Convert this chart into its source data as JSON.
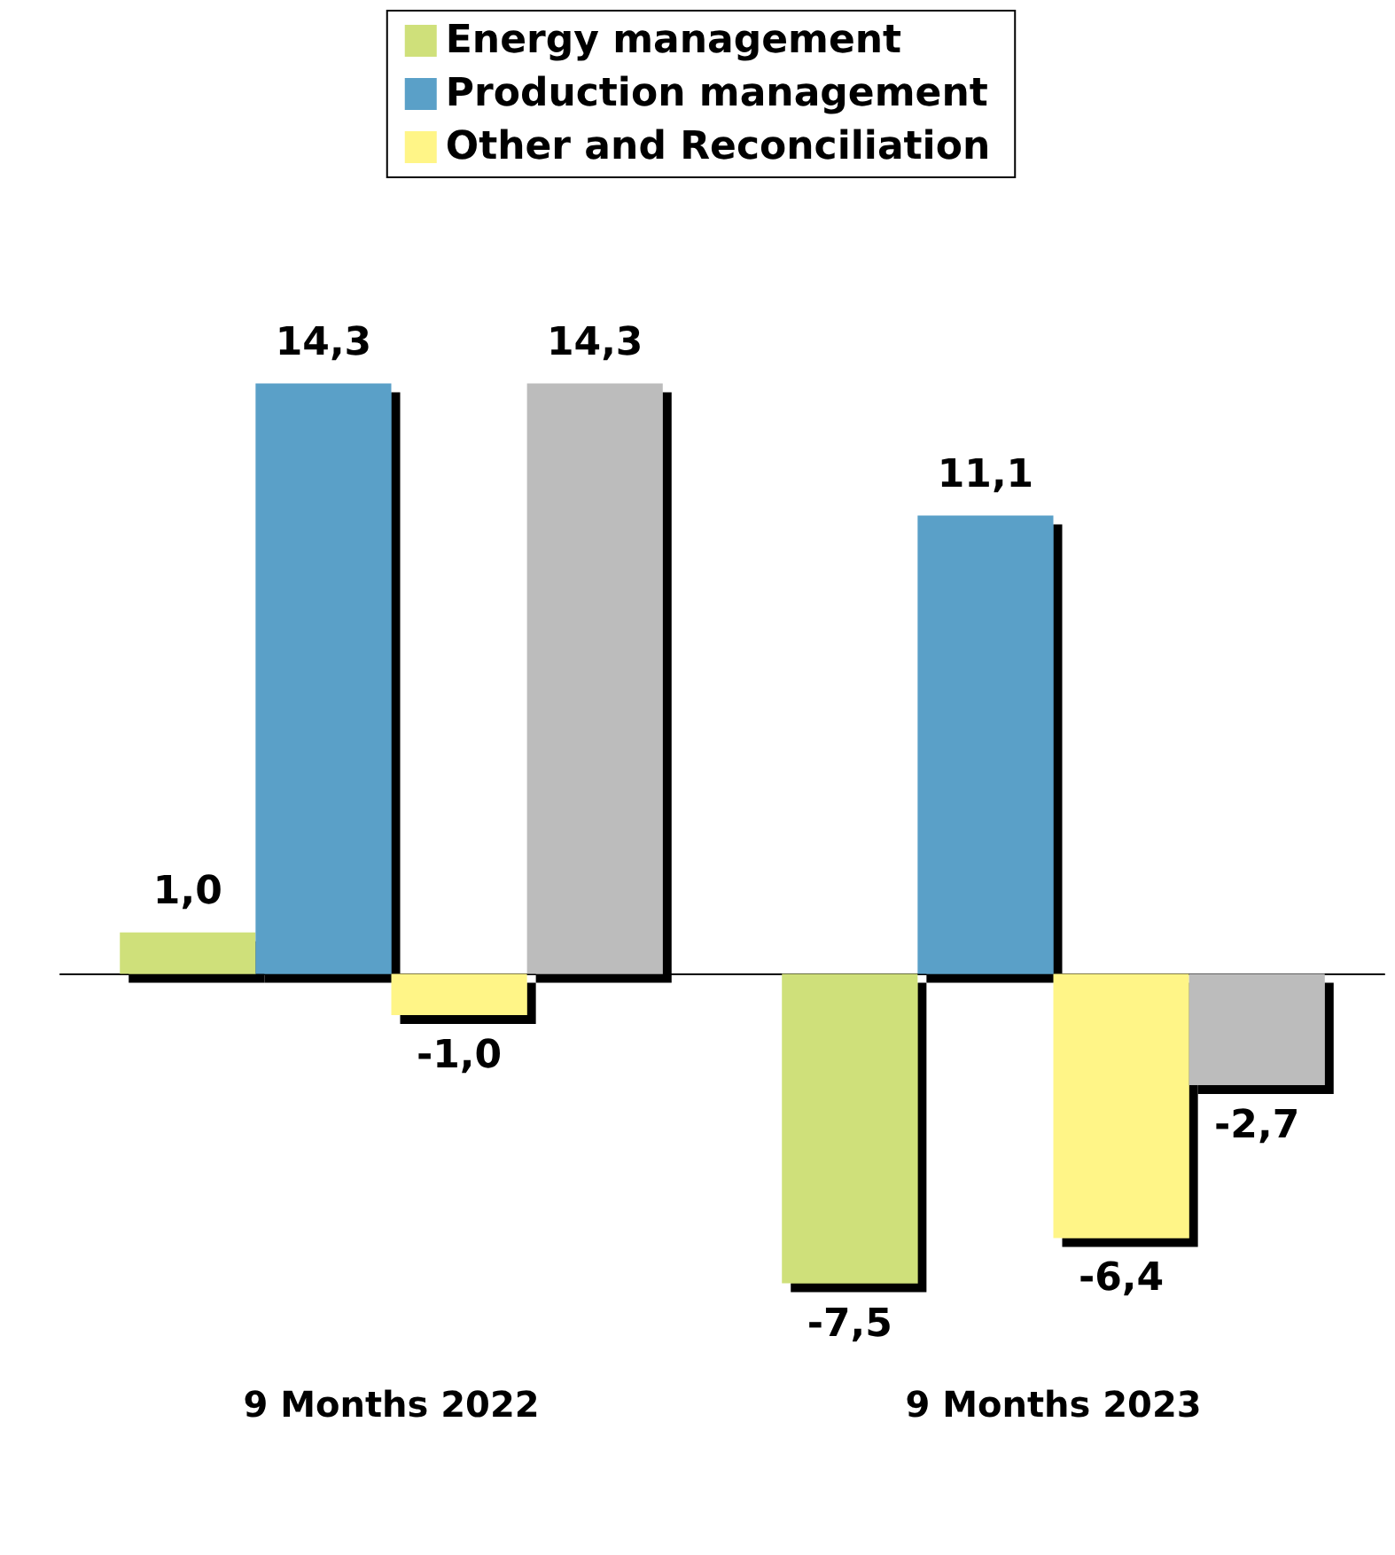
{
  "chart_data": {
    "type": "bar",
    "categories": [
      "9 Months 2022",
      "9 Months 2023"
    ],
    "series": [
      {
        "name": "Energy management",
        "color": "#cfe07a",
        "values": [
          1.0,
          -7.5
        ],
        "value_labels": [
          "1,0",
          "-7,5"
        ]
      },
      {
        "name": "Production management",
        "color": "#5aa0c8",
        "values": [
          14.3,
          11.1
        ],
        "value_labels": [
          "14,3",
          "11,1"
        ]
      },
      {
        "name": "Other and Reconciliation",
        "color": "#fff587",
        "values": [
          -1.0,
          -6.4
        ],
        "value_labels": [
          "-1,0",
          "-6,4"
        ]
      },
      {
        "color": "#bcbcbc",
        "values": [
          14.3,
          -2.7
        ],
        "value_labels": [
          "14,3",
          "-2,7"
        ]
      }
    ],
    "legend": "top",
    "grid": false
  }
}
